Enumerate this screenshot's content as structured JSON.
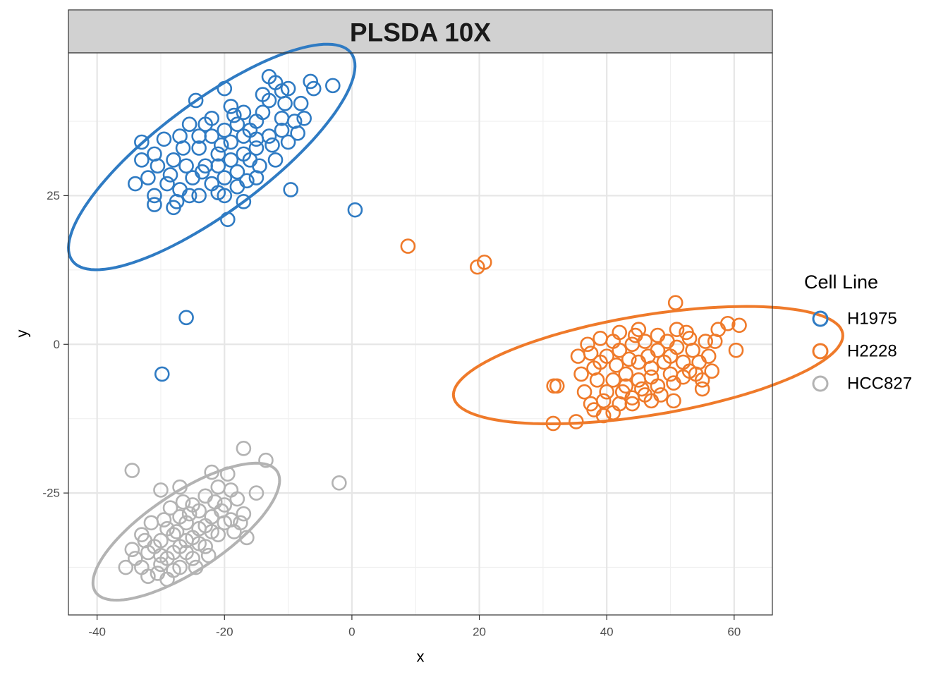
{
  "chart_data": {
    "type": "scatter",
    "title": "PLSDA 10X",
    "xlabel": "x",
    "ylabel": "y",
    "xlim": [
      -44.5,
      66
    ],
    "ylim": [
      -45.5,
      49
    ],
    "x_ticks": [
      -40,
      -20,
      0,
      20,
      40,
      60
    ],
    "y_ticks": [
      -25,
      0,
      25
    ],
    "x_tick_labels": [
      "-40",
      "-20",
      "0",
      "20",
      "40",
      "60"
    ],
    "y_tick_labels": [
      "-25",
      "0",
      "25"
    ],
    "grid": true,
    "legend": {
      "title": "Cell Line",
      "position": "right"
    },
    "series": [
      {
        "name": "H1975",
        "color": "#2f7bc3",
        "marker": "open-circle",
        "ellipse": {
          "cx": -22,
          "cy": 31.5,
          "rx": 28,
          "ry": 9,
          "angle_deg": 39
        },
        "points": [
          [
            -26,
            4.5
          ],
          [
            -29.8,
            -5
          ],
          [
            0.5,
            22.6
          ],
          [
            -9.6,
            26
          ],
          [
            -3,
            43.5
          ],
          [
            -6,
            43
          ],
          [
            -6.5,
            44.2
          ],
          [
            -13,
            45
          ],
          [
            -10,
            43
          ],
          [
            -11,
            42.6
          ],
          [
            -12,
            44
          ],
          [
            -8,
            40.5
          ],
          [
            -24,
            35
          ],
          [
            -20,
            43
          ],
          [
            -33,
            34
          ],
          [
            -34,
            27
          ],
          [
            -33,
            31
          ],
          [
            -31,
            23.5
          ],
          [
            -31,
            25
          ],
          [
            -28,
            23
          ],
          [
            -19.5,
            21
          ],
          [
            -20,
            25
          ],
          [
            -17,
            24
          ],
          [
            -15,
            28
          ],
          [
            -14.5,
            30
          ],
          [
            -10,
            34
          ],
          [
            -8.5,
            35.5
          ],
          [
            -11,
            38
          ],
          [
            -15,
            37.5
          ],
          [
            -17,
            39
          ],
          [
            -19,
            40
          ],
          [
            -22,
            38
          ],
          [
            -24.5,
            41
          ],
          [
            -26.5,
            33
          ],
          [
            -28,
            31
          ],
          [
            -30.5,
            30
          ],
          [
            -29,
            27
          ],
          [
            -27,
            26
          ],
          [
            -25,
            28
          ],
          [
            -23,
            30
          ],
          [
            -21,
            32
          ],
          [
            -19,
            34
          ],
          [
            -17,
            35
          ],
          [
            -15,
            33
          ],
          [
            -13,
            35
          ],
          [
            -12,
            31
          ],
          [
            -16,
            31
          ],
          [
            -18,
            29
          ],
          [
            -20,
            28
          ],
          [
            -22,
            27
          ],
          [
            -24,
            25
          ],
          [
            -21,
            25.5
          ],
          [
            -18,
            26.5
          ],
          [
            -26,
            30
          ],
          [
            -24,
            33
          ],
          [
            -22,
            35
          ],
          [
            -20,
            36
          ],
          [
            -18,
            37
          ],
          [
            -16,
            36
          ],
          [
            -14,
            39
          ],
          [
            -13,
            41
          ],
          [
            -23,
            37
          ],
          [
            -27,
            35
          ],
          [
            -31,
            32
          ],
          [
            -29.5,
            34.5
          ],
          [
            -25.5,
            37
          ],
          [
            -21,
            30
          ],
          [
            -19,
            31
          ],
          [
            -17,
            32
          ],
          [
            -15,
            34.5
          ],
          [
            -11,
            36
          ],
          [
            -9,
            37.5
          ],
          [
            -12.5,
            33.5
          ],
          [
            -16.5,
            27.5
          ],
          [
            -23.5,
            29
          ],
          [
            -25.5,
            25
          ],
          [
            -28.5,
            28.5
          ],
          [
            -32,
            28
          ],
          [
            -27.5,
            24
          ],
          [
            -20.5,
            33.5
          ],
          [
            -18.5,
            38.5
          ],
          [
            -14,
            42
          ],
          [
            -10.5,
            40.5
          ],
          [
            -7.5,
            38
          ]
        ]
      },
      {
        "name": "H2228",
        "color": "#ef7a2a",
        "marker": "open-circle",
        "ellipse": {
          "cx": 46.5,
          "cy": -3.5,
          "rx": 31,
          "ry": 8.4,
          "angle_deg": 10
        },
        "points": [
          [
            8.8,
            16.5
          ],
          [
            19.7,
            13
          ],
          [
            20.8,
            13.8
          ],
          [
            50.8,
            7
          ],
          [
            31.6,
            -13.3
          ],
          [
            35.2,
            -13
          ],
          [
            31.7,
            -7
          ],
          [
            32.2,
            -7
          ],
          [
            60.8,
            3.2
          ],
          [
            59,
            3.5
          ],
          [
            57.5,
            2.5
          ],
          [
            60.3,
            -1
          ],
          [
            53,
            1
          ],
          [
            50.5,
            -9.5
          ],
          [
            55,
            -7.5
          ],
          [
            55,
            -6
          ],
          [
            56,
            -2
          ],
          [
            39.5,
            -12
          ],
          [
            37.5,
            -10
          ],
          [
            36.5,
            -8
          ],
          [
            35.5,
            -2
          ],
          [
            37,
            0
          ],
          [
            39,
            1
          ],
          [
            42,
            2
          ],
          [
            45,
            2.5
          ],
          [
            48,
            1.5
          ],
          [
            51,
            2.5
          ],
          [
            53.5,
            -1
          ],
          [
            52,
            -3
          ],
          [
            50,
            -5
          ],
          [
            48,
            -7
          ],
          [
            46,
            -8.5
          ],
          [
            44,
            -9
          ],
          [
            42,
            -10
          ],
          [
            40,
            -8
          ],
          [
            38.5,
            -6
          ],
          [
            38,
            -4
          ],
          [
            40,
            -2
          ],
          [
            42,
            -1
          ],
          [
            44,
            0
          ],
          [
            46,
            0.5
          ],
          [
            48,
            -1
          ],
          [
            50,
            -2
          ],
          [
            47,
            -4
          ],
          [
            45,
            -3
          ],
          [
            43,
            -5
          ],
          [
            41,
            -6
          ],
          [
            43,
            -7
          ],
          [
            45,
            -6
          ],
          [
            47,
            -5.5
          ],
          [
            49,
            -3
          ],
          [
            51,
            -0.5
          ],
          [
            53,
            -4.5
          ],
          [
            54.5,
            -3
          ],
          [
            41.5,
            -3.5
          ],
          [
            39,
            -3
          ],
          [
            36,
            -5
          ],
          [
            43.5,
            -2.5
          ],
          [
            46.5,
            -2
          ],
          [
            49.5,
            0.5
          ],
          [
            55.5,
            0.5
          ],
          [
            52.5,
            2
          ],
          [
            44.5,
            1.5
          ],
          [
            41,
            0.5
          ],
          [
            37.5,
            -1.5
          ],
          [
            39.5,
            -9.5
          ],
          [
            42.5,
            -8
          ],
          [
            45.5,
            -7.5
          ],
          [
            48.5,
            -8.5
          ],
          [
            50.5,
            -6.5
          ],
          [
            52,
            -5.5
          ],
          [
            54,
            -5
          ],
          [
            56.5,
            -4.5
          ],
          [
            57,
            0.5
          ],
          [
            38,
            -11
          ],
          [
            41,
            -11.5
          ],
          [
            44,
            -10
          ],
          [
            47,
            -9.5
          ]
        ]
      },
      {
        "name": "HCC827",
        "color": "#b3b3b3",
        "marker": "open-circle",
        "ellipse": {
          "cx": -26,
          "cy": -31.5,
          "rx": 17.5,
          "ry": 6.4,
          "angle_deg": 36
        },
        "points": [
          [
            -2,
            -23.3
          ],
          [
            -17,
            -17.5
          ],
          [
            -13.5,
            -19.5
          ],
          [
            -34.5,
            -21.2
          ],
          [
            -15,
            -25
          ],
          [
            -17,
            -28.5
          ],
          [
            -30,
            -24.5
          ],
          [
            -27,
            -24
          ],
          [
            -22,
            -21.5
          ],
          [
            -19.5,
            -21.8
          ],
          [
            -29,
            -39.5
          ],
          [
            -34,
            -36
          ],
          [
            -35.5,
            -37.5
          ],
          [
            -32,
            -39
          ],
          [
            -30,
            -37
          ],
          [
            -28,
            -35
          ],
          [
            -26,
            -33
          ],
          [
            -24,
            -31
          ],
          [
            -22,
            -29
          ],
          [
            -20,
            -27
          ],
          [
            -18,
            -26
          ],
          [
            -19,
            -29.5
          ],
          [
            -21,
            -32
          ],
          [
            -23,
            -34
          ],
          [
            -25,
            -36
          ],
          [
            -27,
            -37.5
          ],
          [
            -31,
            -34
          ],
          [
            -33,
            -32
          ],
          [
            -29,
            -31
          ],
          [
            -27,
            -29
          ],
          [
            -25,
            -27
          ],
          [
            -23,
            -25.5
          ],
          [
            -21,
            -24
          ],
          [
            -24,
            -28
          ],
          [
            -26,
            -30
          ],
          [
            -28,
            -32
          ],
          [
            -30,
            -33
          ],
          [
            -32,
            -35
          ],
          [
            -29,
            -36
          ],
          [
            -27,
            -34
          ],
          [
            -25,
            -32.5
          ],
          [
            -23,
            -30.5
          ],
          [
            -20.5,
            -28
          ],
          [
            -18.5,
            -31.5
          ],
          [
            -16.5,
            -32.5
          ],
          [
            -22.5,
            -35.5
          ],
          [
            -24.5,
            -37.5
          ],
          [
            -33,
            -37.5
          ],
          [
            -31.5,
            -30
          ],
          [
            -28.5,
            -27.5
          ],
          [
            -26.5,
            -26.5
          ],
          [
            -19,
            -24.5
          ],
          [
            -17.5,
            -30
          ],
          [
            -30.5,
            -38.5
          ],
          [
            -34.5,
            -34.5
          ],
          [
            -32.5,
            -33
          ],
          [
            -30,
            -35.5
          ],
          [
            -28,
            -38
          ],
          [
            -26,
            -35
          ],
          [
            -24,
            -33.5
          ],
          [
            -22,
            -31.5
          ],
          [
            -20,
            -30
          ],
          [
            -27.5,
            -31.5
          ],
          [
            -29.5,
            -29.5
          ],
          [
            -25.5,
            -28.5
          ],
          [
            -21.5,
            -26.5
          ]
        ]
      }
    ]
  }
}
